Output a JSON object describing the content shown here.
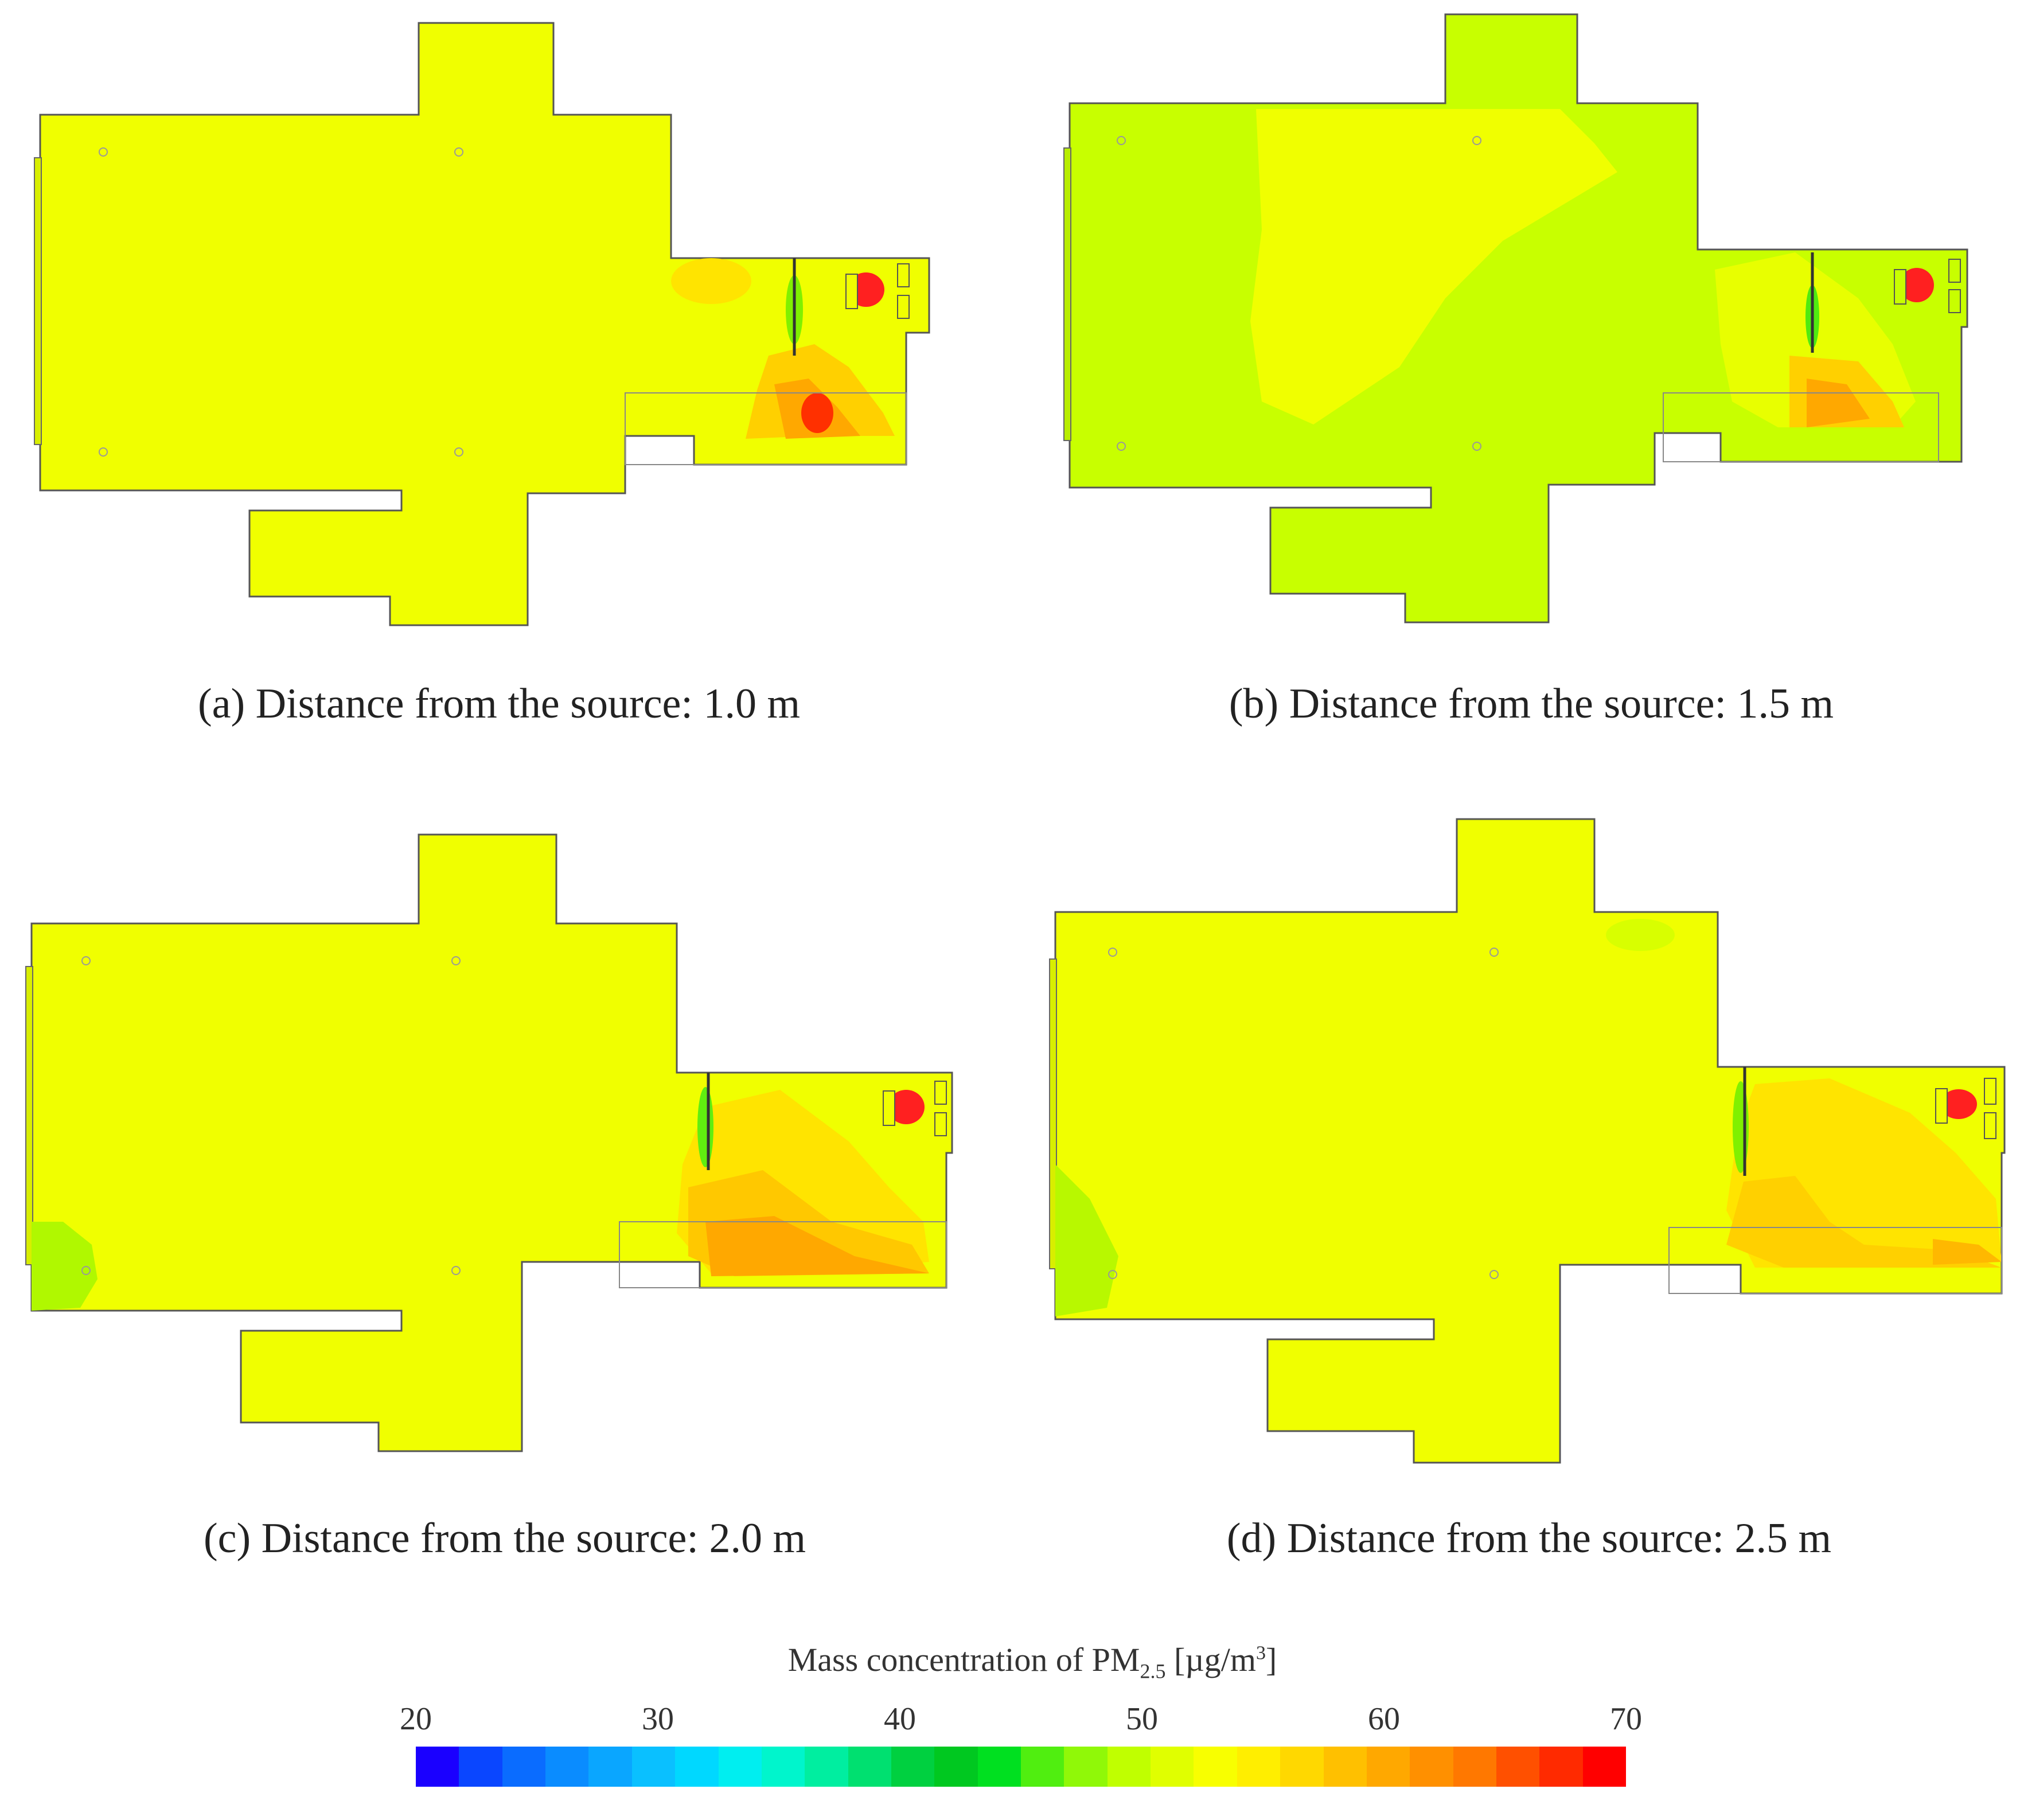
{
  "panels": [
    {
      "id": "a",
      "caption": "(a) Distance from the source: 1.0 m",
      "base_color": "#f0ff00",
      "variant": "a"
    },
    {
      "id": "b",
      "caption": "(b) Distance from the source: 1.5 m",
      "base_color": "#c8ff00",
      "variant": "b"
    },
    {
      "id": "c",
      "caption": "(c) Distance from the source: 2.0 m",
      "base_color": "#f0ff00",
      "variant": "c"
    },
    {
      "id": "d",
      "caption": "(d) Distance from the source: 2.5 m",
      "base_color": "#f0ff00",
      "variant": "d"
    }
  ],
  "colorbar": {
    "title_prefix": "Mass concentration of PM",
    "title_sub": "2.5",
    "title_unit_prefix": " [µg/m",
    "title_unit_sup": "3",
    "title_unit_suffix": "]",
    "min": 20,
    "max": 70,
    "tick_values": [
      20,
      30,
      40,
      50,
      60,
      70
    ],
    "tick_labels": [
      "20",
      "30",
      "40",
      "50",
      "60",
      "70"
    ],
    "colors": [
      "#1a00ff",
      "#0a46ff",
      "#0a6cff",
      "#0a8cff",
      "#0aa6ff",
      "#0ac0ff",
      "#00d8ff",
      "#00eef0",
      "#00f5cc",
      "#00eea0",
      "#00e070",
      "#00d040",
      "#00c820",
      "#00e020",
      "#50ee10",
      "#90f808",
      "#c0ff00",
      "#e0ff00",
      "#f8ff00",
      "#ffee00",
      "#ffd800",
      "#ffc000",
      "#ffa800",
      "#ff9000",
      "#ff7800",
      "#ff5000",
      "#ff2a00",
      "#ff0000"
    ]
  }
}
